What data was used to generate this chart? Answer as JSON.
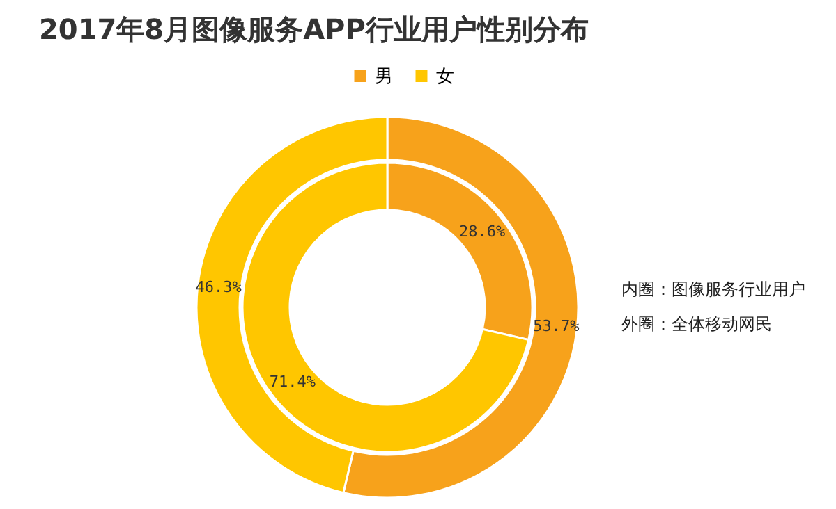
{
  "chart_data": {
    "type": "donut",
    "title": "2017年8月图像服务APP行业用户性别分布",
    "categories": [
      "男",
      "女"
    ],
    "colors": [
      "#f7a21b",
      "#ffc600"
    ],
    "series": [
      {
        "values": [
          28.6,
          71.4
        ],
        "value_labels": [
          "28.6%",
          "71.4%"
        ]
      },
      {
        "values": [
          53.7,
          46.3
        ],
        "value_labels": [
          "53.7%",
          "46.3%"
        ]
      }
    ],
    "legend": "top",
    "annotations": [
      "内圈：图像服务行业用户",
      "外圈：全体移动网民"
    ]
  }
}
